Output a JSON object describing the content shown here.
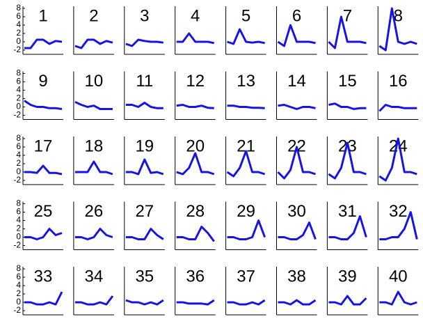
{
  "chart_data": [
    {
      "type": "line",
      "title": "1",
      "categories": [
        null,
        null,
        null,
        null,
        null,
        null,
        null
      ],
      "values": [
        -1.5,
        -1.5,
        0.5,
        0.5,
        -0.5,
        0.2,
        0
      ],
      "color": "#1414e6",
      "ylim": [
        -3,
        8.5
      ],
      "yticks": [
        -2,
        0,
        2,
        4,
        6,
        8
      ]
    },
    {
      "type": "line",
      "title": "2",
      "categories": [
        null,
        null,
        null,
        null,
        null,
        null,
        null
      ],
      "values": [
        -1,
        -1.5,
        0.5,
        0.5,
        -0.5,
        0.2,
        -0.2
      ],
      "color": "#1414e6",
      "ylim": [
        -3,
        8.5
      ]
    },
    {
      "type": "line",
      "title": "3",
      "categories": [
        null,
        null,
        null,
        null,
        null,
        null,
        null
      ],
      "values": [
        -0.5,
        -1,
        0.5,
        0.2,
        0,
        0,
        -0.2
      ],
      "color": "#1414e6",
      "ylim": [
        -3,
        8.5
      ]
    },
    {
      "type": "line",
      "title": "4",
      "categories": [
        null,
        null,
        null,
        null,
        null,
        null,
        null
      ],
      "values": [
        0,
        0,
        2,
        0,
        0,
        0,
        -0.3
      ],
      "color": "#1414e6",
      "ylim": [
        -3,
        8.5
      ]
    },
    {
      "type": "line",
      "title": "5",
      "categories": [
        null,
        null,
        null,
        null,
        null,
        null,
        null
      ],
      "values": [
        0,
        -0.5,
        3,
        0,
        -0.2,
        0,
        -0.3
      ],
      "color": "#1414e6",
      "ylim": [
        -3,
        8.5
      ]
    },
    {
      "type": "line",
      "title": "6",
      "categories": [
        null,
        null,
        null,
        null,
        null,
        null,
        null
      ],
      "values": [
        0,
        -1,
        4,
        0,
        0,
        0,
        -0.3
      ],
      "color": "#1414e6",
      "ylim": [
        -3,
        8.5
      ]
    },
    {
      "type": "line",
      "title": "7",
      "categories": [
        null,
        null,
        null,
        null,
        null,
        null,
        null
      ],
      "values": [
        0,
        -1.5,
        6,
        0,
        0,
        0,
        -0.3
      ],
      "color": "#1414e6",
      "ylim": [
        -3,
        8.5
      ]
    },
    {
      "type": "line",
      "title": "8",
      "categories": [
        null,
        null,
        null,
        null,
        null,
        null,
        null
      ],
      "values": [
        -1,
        -2,
        8,
        0,
        -0.5,
        0,
        -0.5
      ],
      "color": "#1414e6",
      "ylim": [
        -3,
        8.5
      ]
    },
    {
      "type": "line",
      "title": "9",
      "categories": [
        null,
        null,
        null,
        null,
        null,
        null,
        null
      ],
      "values": [
        1.5,
        0.5,
        0,
        0,
        -0.3,
        -0.3,
        -0.5
      ],
      "color": "#1414e6",
      "ylim": [
        -3,
        8.5
      ],
      "yticks": [
        -2,
        0,
        2,
        4,
        6,
        8
      ]
    },
    {
      "type": "line",
      "title": "10",
      "categories": [
        null,
        null,
        null,
        null,
        null,
        null,
        null
      ],
      "values": [
        1.2,
        0.5,
        0,
        0.3,
        -0.5,
        -0.5,
        -0.5
      ],
      "color": "#1414e6",
      "ylim": [
        -3,
        8.5
      ]
    },
    {
      "type": "line",
      "title": "11",
      "categories": [
        null,
        null,
        null,
        null,
        null,
        null,
        null
      ],
      "values": [
        0.5,
        0.5,
        0,
        1,
        0,
        -0.3,
        -0.3
      ],
      "color": "#1414e6",
      "ylim": [
        -3,
        8.5
      ]
    },
    {
      "type": "line",
      "title": "12",
      "categories": [
        null,
        null,
        null,
        null,
        null,
        null,
        null
      ],
      "values": [
        0.3,
        0.5,
        0,
        0,
        0.3,
        -0.2,
        -0.3
      ],
      "color": "#1414e6",
      "ylim": [
        -3,
        8.5
      ]
    },
    {
      "type": "line",
      "title": "13",
      "categories": [
        null,
        null,
        null,
        null,
        null,
        null,
        null
      ],
      "values": [
        0.3,
        0.3,
        0,
        0,
        -0.2,
        -0.2,
        -0.3
      ],
      "color": "#1414e6",
      "ylim": [
        -3,
        8.5
      ]
    },
    {
      "type": "line",
      "title": "14",
      "categories": [
        null,
        null,
        null,
        null,
        null,
        null,
        null
      ],
      "values": [
        0.3,
        0.5,
        0,
        -0.5,
        0,
        0,
        -0.3
      ],
      "color": "#1414e6",
      "ylim": [
        -3,
        8.5
      ]
    },
    {
      "type": "line",
      "title": "15",
      "categories": [
        null,
        null,
        null,
        null,
        null,
        null,
        null
      ],
      "values": [
        0.5,
        0.8,
        0,
        0,
        -0.5,
        -0.3,
        -0.3
      ],
      "color": "#1414e6",
      "ylim": [
        -3,
        8.5
      ]
    },
    {
      "type": "line",
      "title": "16",
      "categories": [
        null,
        null,
        null,
        null,
        null,
        null,
        null
      ],
      "values": [
        -1,
        0.5,
        0,
        0,
        -0.3,
        -0.3,
        -0.3
      ],
      "color": "#1414e6",
      "ylim": [
        -3,
        8.5
      ]
    },
    {
      "type": "line",
      "title": "17",
      "categories": [
        null,
        null,
        null,
        null,
        null,
        null,
        null
      ],
      "values": [
        0,
        0,
        -0.2,
        1.5,
        -0.2,
        -0.2,
        -0.5
      ],
      "color": "#1414e6",
      "ylim": [
        -3,
        8.5
      ],
      "yticks": [
        -2,
        0,
        2,
        4,
        6,
        8
      ]
    },
    {
      "type": "line",
      "title": "18",
      "categories": [
        null,
        null,
        null,
        null,
        null,
        null,
        null
      ],
      "values": [
        0,
        0,
        0,
        2.5,
        0,
        0,
        -0.5
      ],
      "color": "#1414e6",
      "ylim": [
        -3,
        8.5
      ]
    },
    {
      "type": "line",
      "title": "19",
      "categories": [
        null,
        null,
        null,
        null,
        null,
        null,
        null
      ],
      "values": [
        0,
        0,
        -0.5,
        3,
        -0.2,
        0,
        -0.5
      ],
      "color": "#1414e6",
      "ylim": [
        -3,
        8.5
      ]
    },
    {
      "type": "line",
      "title": "20",
      "categories": [
        null,
        null,
        null,
        null,
        null,
        null,
        null
      ],
      "values": [
        0,
        -0.5,
        1,
        4.5,
        0,
        0,
        -0.5
      ],
      "color": "#1414e6",
      "ylim": [
        -3,
        8.5
      ]
    },
    {
      "type": "line",
      "title": "21",
      "categories": [
        null,
        null,
        null,
        null,
        null,
        null,
        null
      ],
      "values": [
        0,
        -1,
        1,
        5,
        0,
        0,
        -0.5
      ],
      "color": "#1414e6",
      "ylim": [
        -3,
        8.5
      ]
    },
    {
      "type": "line",
      "title": "22",
      "categories": [
        null,
        null,
        null,
        null,
        null,
        null,
        null
      ],
      "values": [
        0,
        -1.5,
        0.5,
        6,
        0,
        0,
        -0.5
      ],
      "color": "#1414e6",
      "ylim": [
        -3,
        8.5
      ]
    },
    {
      "type": "line",
      "title": "23",
      "categories": [
        null,
        null,
        null,
        null,
        null,
        null,
        null
      ],
      "values": [
        -0.5,
        -1.5,
        1,
        7,
        0,
        0,
        -0.5
      ],
      "color": "#1414e6",
      "ylim": [
        -3,
        8.5
      ]
    },
    {
      "type": "line",
      "title": "24",
      "categories": [
        null,
        null,
        null,
        null,
        null,
        null,
        null
      ],
      "values": [
        -1,
        -2,
        1,
        8,
        0,
        0,
        -0.5
      ],
      "color": "#1414e6",
      "ylim": [
        -3,
        8.5
      ]
    },
    {
      "type": "line",
      "title": "25",
      "categories": [
        null,
        null,
        null,
        null,
        null,
        null,
        null
      ],
      "values": [
        0,
        0,
        -0.5,
        0,
        2,
        0.5,
        1
      ],
      "color": "#1414e6",
      "ylim": [
        -3,
        8.5
      ],
      "yticks": [
        -2,
        0,
        2,
        4,
        6,
        8
      ]
    },
    {
      "type": "line",
      "title": "26",
      "categories": [
        null,
        null,
        null,
        null,
        null,
        null,
        null
      ],
      "values": [
        0,
        0,
        -0.5,
        0,
        2,
        0.5,
        0
      ],
      "color": "#1414e6",
      "ylim": [
        -3,
        8.5
      ]
    },
    {
      "type": "line",
      "title": "27",
      "categories": [
        null,
        null,
        null,
        null,
        null,
        null,
        null
      ],
      "values": [
        0,
        0,
        -0.5,
        -0.5,
        2,
        0.5,
        -0.5
      ],
      "color": "#1414e6",
      "ylim": [
        -3,
        8.5
      ]
    },
    {
      "type": "line",
      "title": "28",
      "categories": [
        null,
        null,
        null,
        null,
        null,
        null,
        null
      ],
      "values": [
        0,
        0,
        -0.5,
        -0.5,
        2.5,
        1,
        -1
      ],
      "color": "#1414e6",
      "ylim": [
        -3,
        8.5
      ]
    },
    {
      "type": "line",
      "title": "29",
      "categories": [
        null,
        null,
        null,
        null,
        null,
        null,
        null
      ],
      "values": [
        0,
        0,
        -0.5,
        -0.5,
        0,
        4,
        0
      ],
      "color": "#1414e6",
      "ylim": [
        -3,
        8.5
      ]
    },
    {
      "type": "line",
      "title": "30",
      "categories": [
        null,
        null,
        null,
        null,
        null,
        null,
        null
      ],
      "values": [
        0,
        0,
        -0.5,
        -0.5,
        0.5,
        3.5,
        -0.5
      ],
      "color": "#1414e6",
      "ylim": [
        -3,
        8.5
      ]
    },
    {
      "type": "line",
      "title": "31",
      "categories": [
        null,
        null,
        null,
        null,
        null,
        null,
        null
      ],
      "values": [
        0,
        0,
        -0.5,
        -0.5,
        1,
        5,
        0
      ],
      "color": "#1414e6",
      "ylim": [
        -3,
        8.5
      ]
    },
    {
      "type": "line",
      "title": "32",
      "categories": [
        null,
        null,
        null,
        null,
        null,
        null,
        null
      ],
      "values": [
        -0.5,
        -0.5,
        0,
        0,
        2,
        6,
        -0.5
      ],
      "color": "#1414e6",
      "ylim": [
        -3,
        8.5
      ]
    },
    {
      "type": "line",
      "title": "33",
      "categories": [
        null,
        null,
        null,
        null,
        null,
        null,
        null
      ],
      "values": [
        0,
        0,
        -0.5,
        -0.5,
        0,
        -0.5,
        2.5
      ],
      "color": "#1414e6",
      "ylim": [
        -3,
        8.5
      ],
      "yticks": [
        -2,
        0,
        2,
        4,
        6,
        8
      ]
    },
    {
      "type": "line",
      "title": "34",
      "categories": [
        null,
        null,
        null,
        null,
        null,
        null,
        null
      ],
      "values": [
        0,
        0,
        -0.5,
        -0.5,
        0,
        -0.5,
        1.5
      ],
      "color": "#1414e6",
      "ylim": [
        -3,
        8.5
      ]
    },
    {
      "type": "line",
      "title": "35",
      "categories": [
        null,
        null,
        null,
        null,
        null,
        null,
        null
      ],
      "values": [
        0.5,
        0,
        0,
        -0.5,
        0,
        -0.5,
        0.5
      ],
      "color": "#1414e6",
      "ylim": [
        -3,
        8.5
      ]
    },
    {
      "type": "line",
      "title": "36",
      "categories": [
        null,
        null,
        null,
        null,
        null,
        null,
        null
      ],
      "values": [
        0,
        0,
        -0.3,
        -0.3,
        -0.3,
        -0.5,
        0.5
      ],
      "color": "#1414e6",
      "ylim": [
        -3,
        8.5
      ]
    },
    {
      "type": "line",
      "title": "37",
      "categories": [
        null,
        null,
        null,
        null,
        null,
        null,
        null
      ],
      "values": [
        0,
        0,
        -0.5,
        -0.5,
        0,
        -0.5,
        0.5
      ],
      "color": "#1414e6",
      "ylim": [
        -3,
        8.5
      ]
    },
    {
      "type": "line",
      "title": "38",
      "categories": [
        null,
        null,
        null,
        null,
        null,
        null,
        null
      ],
      "values": [
        0,
        0,
        -0.5,
        0.5,
        -0.5,
        -0.5,
        0.5
      ],
      "color": "#1414e6",
      "ylim": [
        -3,
        8.5
      ]
    },
    {
      "type": "line",
      "title": "39",
      "categories": [
        null,
        null,
        null,
        null,
        null,
        null,
        null
      ],
      "values": [
        0,
        0,
        -0.5,
        1.5,
        -0.5,
        -0.5,
        1
      ],
      "color": "#1414e6",
      "ylim": [
        -3,
        8.5
      ]
    },
    {
      "type": "line",
      "title": "40",
      "categories": [
        null,
        null,
        null,
        null,
        null,
        null,
        null
      ],
      "values": [
        0,
        0,
        -0.5,
        2.5,
        0,
        -0.5,
        0
      ],
      "color": "#1414e6",
      "ylim": [
        -3,
        8.5
      ]
    }
  ]
}
